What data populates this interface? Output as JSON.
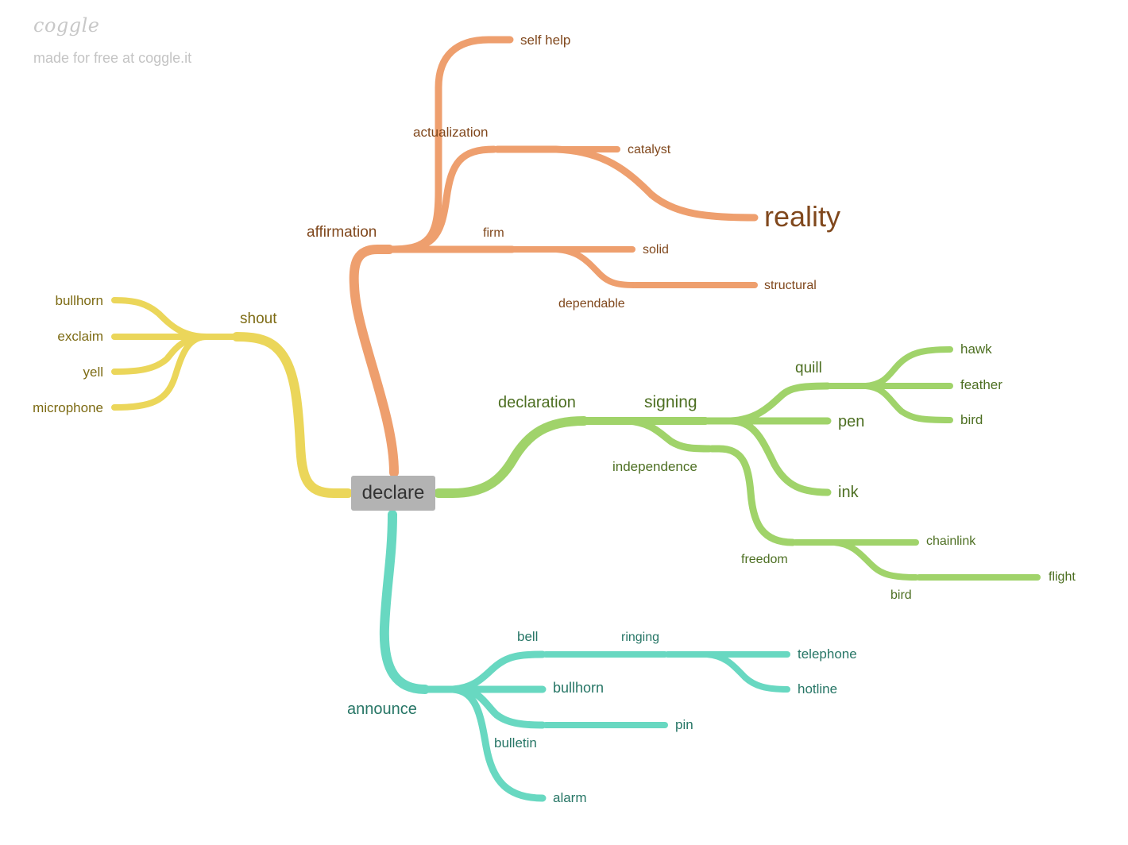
{
  "brand": {
    "logo": "coggle",
    "tagline": "made for free at coggle.it"
  },
  "colors": {
    "orange": "#ee9f6e",
    "orange_text": "#80481d",
    "yellow": "#ebd65a",
    "yellow_text": "#7d6b14",
    "green": "#a0d36a",
    "green_text": "#4d6f22",
    "teal": "#68d8c1",
    "teal_text": "#277666",
    "root": "#b3b3b3"
  },
  "root": {
    "label": "declare"
  },
  "branches": {
    "affirmation": {
      "label": "affirmation",
      "actualization": "actualization",
      "self_help": "self help",
      "catalyst": "catalyst",
      "reality": "reality",
      "firm": "firm",
      "solid": "solid",
      "dependable": "dependable",
      "structural": "structural"
    },
    "shout": {
      "label": "shout",
      "bullhorn": "bullhorn",
      "exclaim": "exclaim",
      "yell": "yell",
      "microphone": "microphone"
    },
    "declaration": {
      "label": "declaration",
      "signing": "signing",
      "quill": "quill",
      "hawk": "hawk",
      "feather": "feather",
      "bird": "bird",
      "pen": "pen",
      "ink": "ink",
      "independence": "independence",
      "freedom": "freedom",
      "chainlink": "chainlink",
      "bird2": "bird",
      "flight": "flight"
    },
    "announce": {
      "label": "announce",
      "bell": "bell",
      "ringing": "ringing",
      "telephone": "telephone",
      "hotline": "hotline",
      "bullhorn": "bullhorn",
      "bulletin": "bulletin",
      "pin": "pin",
      "alarm": "alarm"
    }
  }
}
